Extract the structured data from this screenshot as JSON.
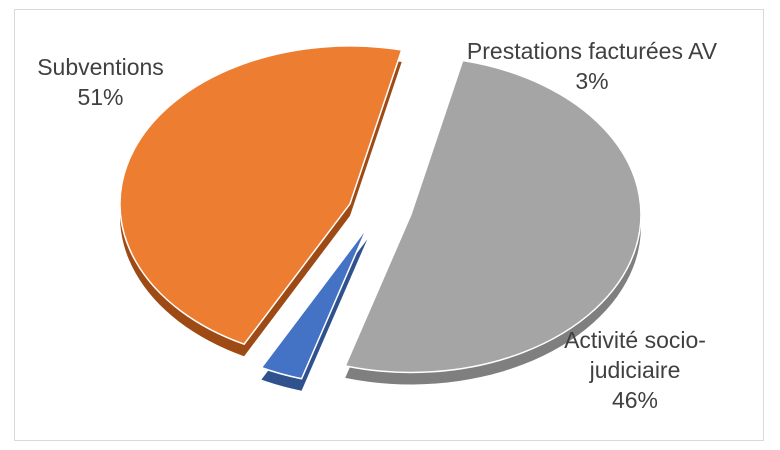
{
  "chart_data": {
    "type": "pie",
    "title": "",
    "legend": "none",
    "slices": [
      {
        "name": "Subventions",
        "name_lines": [
          "Subventions"
        ],
        "value": 51,
        "label": "51%",
        "color": "#a5a5a5",
        "side_color": "#7f7f7f"
      },
      {
        "name": "Prestations facturées AV",
        "name_lines": [
          "Prestations facturées AV"
        ],
        "value": 3,
        "label": "3%",
        "color": "#4472c4",
        "side_color": "#2f528f"
      },
      {
        "name": "Activité socio-judiciaire",
        "name_lines": [
          "Activité socio-",
          "judiciaire"
        ],
        "value": 46,
        "label": "46%",
        "color": "#ed7d31",
        "side_color": "#9e4a14"
      }
    ]
  }
}
